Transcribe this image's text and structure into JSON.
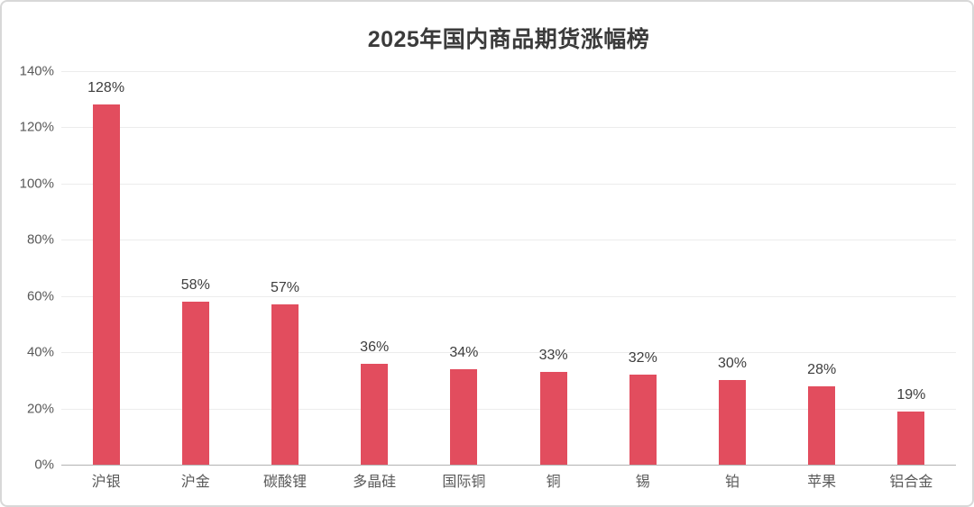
{
  "title": "2025年国内商品期货涨幅榜",
  "chart_data": {
    "type": "bar",
    "title": "2025年国内商品期货涨幅榜",
    "categories": [
      "沪银",
      "沪金",
      "碳酸锂",
      "多晶硅",
      "国际铜",
      "铜",
      "锡",
      "铂",
      "苹果",
      "铝合金"
    ],
    "values": [
      128,
      58,
      57,
      36,
      34,
      33,
      32,
      30,
      28,
      19
    ],
    "data_labels": [
      "128%",
      "58%",
      "57%",
      "36%",
      "34%",
      "33%",
      "32%",
      "30%",
      "28%",
      "19%"
    ],
    "y_tick_labels": [
      "0%",
      "20%",
      "40%",
      "60%",
      "80%",
      "100%",
      "120%",
      "140%"
    ],
    "ylim": [
      0,
      140
    ],
    "y_step": 20,
    "xlabel": "",
    "ylabel": "",
    "grid": true,
    "legend": false,
    "bar_color": "#e24d5e",
    "gridline_color": "#ececec",
    "axis_line_color": "#b3b3b3",
    "label_color": "#3d3d3d",
    "tick_color": "#595959",
    "title_color": "#3b3b3b"
  }
}
